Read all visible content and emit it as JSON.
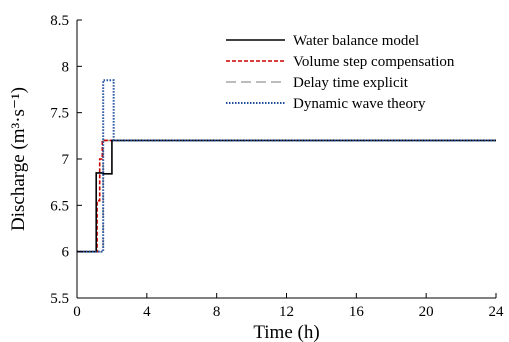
{
  "chart_data": {
    "type": "line",
    "xlabel": "Time (h)",
    "ylabel": "Discharge (m³·s⁻¹)",
    "xlim": [
      0,
      24
    ],
    "ylim": [
      5.5,
      8.5
    ],
    "xticks": [
      0,
      4,
      8,
      12,
      16,
      20,
      24
    ],
    "yticks": [
      5.5,
      6,
      6.5,
      7,
      7.5,
      8,
      8.5
    ],
    "xtick_labels": [
      "0",
      "4",
      "8",
      "12",
      "16",
      "20",
      "24"
    ],
    "ytick_labels": [
      "5.5",
      "6",
      "6.5",
      "7",
      "7.5",
      "8",
      "8.5"
    ],
    "grid": false,
    "legend_position": "top-right",
    "series": [
      {
        "name": "Water balance model",
        "color": "#000000",
        "dash": "solid",
        "x": [
          0,
          1.1,
          1.1,
          1.5,
          1.5,
          2.0,
          2.0,
          24
        ],
        "y": [
          6.0,
          6.0,
          6.85,
          6.85,
          6.84,
          6.84,
          7.2,
          7.2
        ]
      },
      {
        "name": "Volume step compensation",
        "color": "#cc0000",
        "dash": "dashed",
        "x": [
          0,
          1.15,
          1.15,
          1.3,
          1.3,
          1.45,
          1.45,
          24
        ],
        "y": [
          6.0,
          6.0,
          6.55,
          6.55,
          7.0,
          7.0,
          7.2,
          7.2
        ]
      },
      {
        "name": "Delay time explicit",
        "color": "#a6a6a6",
        "dash": "longdash",
        "x": [
          0,
          1.5,
          1.5,
          24
        ],
        "y": [
          6.0,
          6.0,
          7.2,
          7.2
        ]
      },
      {
        "name": "Dynamic wave theory",
        "color": "#1f4e9c",
        "dash": "dotted",
        "x": [
          0,
          1.5,
          1.5,
          2.1,
          2.1,
          24
        ],
        "y": [
          6.0,
          6.0,
          7.85,
          7.85,
          7.2,
          7.2
        ]
      }
    ]
  }
}
